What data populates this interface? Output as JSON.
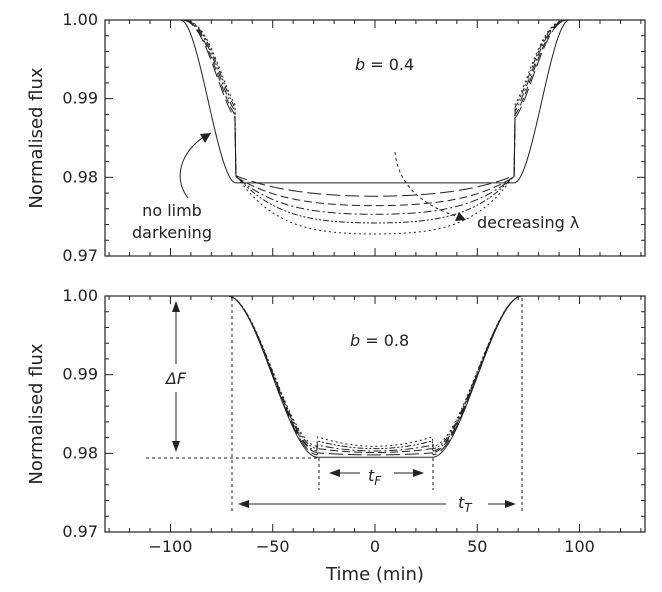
{
  "chart_data": [
    {
      "type": "line",
      "panel": "top",
      "ylabel": "Normalised flux",
      "xlim": [
        -132,
        132
      ],
      "ylim": [
        0.97,
        1.0
      ],
      "yticks": [
        "0.97",
        "0.98",
        "0.99",
        "1.00"
      ],
      "grid": false,
      "model": {
        "t_contact": 95,
        "depth": 0.0207,
        "shape": "flat-bottom transit, ingress -95 to -68 min, egress 68 to 95 min"
      },
      "series": [
        {
          "dash": "solid",
          "min_flux": 0.9793
        },
        {
          "dash": "long-dash",
          "min_flux": 0.9776
        },
        {
          "dash": "dash",
          "min_flux": 0.9764
        },
        {
          "dash": "dash-dot",
          "min_flux": 0.9753
        },
        {
          "dash": "dash-dot-dot",
          "min_flux": 0.9742
        },
        {
          "dash": "dotted",
          "min_flux": 0.9728
        }
      ],
      "annotations": {
        "impact": "b = 0.4",
        "no_limb_line1": "no limb",
        "no_limb_line2": "darkening",
        "decreasing": "decreasing λ"
      }
    },
    {
      "type": "line",
      "panel": "bottom",
      "ylabel": "Normalised flux",
      "xlabel": "Time (min)",
      "xlim": [
        -132,
        132
      ],
      "ylim": [
        0.97,
        1.0
      ],
      "xticks": [
        "−100",
        "−50",
        "0",
        "50",
        "100"
      ],
      "yticks": [
        "0.97",
        "0.98",
        "0.99",
        "1.00"
      ],
      "grid": false,
      "model": {
        "t_contact": 72,
        "depth": 0.0207,
        "shape": "transit, ingress -72 to -28 min, egress 28 to 72 min"
      },
      "series": [
        {
          "dash": "solid",
          "min_flux": 0.9795
        },
        {
          "dash": "long-dash",
          "min_flux": 0.9798
        },
        {
          "dash": "dash",
          "min_flux": 0.9801
        },
        {
          "dash": "dash-dot",
          "min_flux": 0.9803
        },
        {
          "dash": "dash-dot-dot",
          "min_flux": 0.9806
        },
        {
          "dash": "dotted",
          "min_flux": 0.9809
        }
      ],
      "annotations": {
        "impact": "b = 0.8",
        "delta_f": "ΔF",
        "t_f": "t",
        "t_f_sub": "F",
        "t_t": "t",
        "t_t_sub": "T"
      }
    }
  ]
}
